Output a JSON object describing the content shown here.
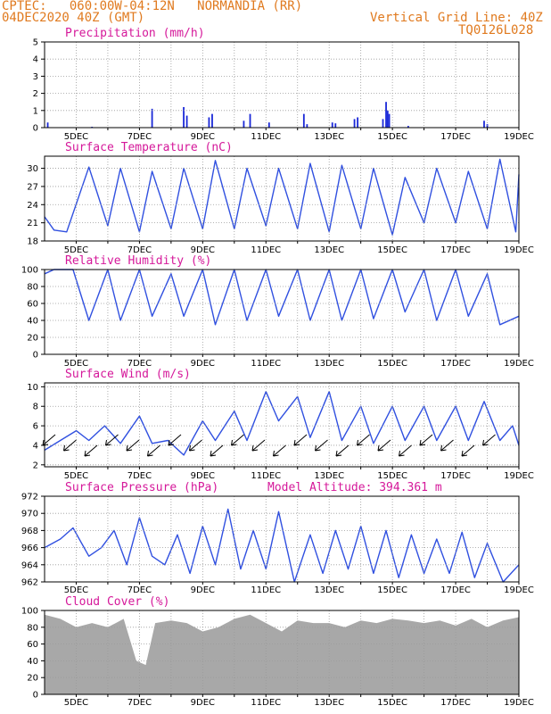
{
  "header": {
    "line1": "CPTEC:   060:00W-04:12N   NORMANDIA (RR)",
    "line2": "04DEC2020 40Z (GMT)",
    "right1": "Vertical Grid Line: 40Z",
    "right2": "TQ0126L028"
  },
  "x_dates": [
    "5DEC",
    "7DEC",
    "9DEC",
    "11DEC",
    "13DEC",
    "15DEC",
    "17DEC",
    "19DEC"
  ],
  "model_altitude": "Model Altitude: 394.361  m",
  "colors": {
    "line": "#3050e0",
    "bar": "#1a28d8",
    "cloud": "#a8a8a8",
    "title": "#d5189a",
    "header": "#e07a1f",
    "grid": "#9a9a9a"
  },
  "chart_data": [
    {
      "type": "bar",
      "title": "Precipitation (mm/h)",
      "ylim": [
        0,
        5
      ],
      "yticks": [
        0,
        1,
        2,
        3,
        4,
        5
      ],
      "series": [
        {
          "values": [
            [
              4.1,
              0.3
            ],
            [
              5.5,
              0.05
            ],
            [
              7.4,
              1.1
            ],
            [
              8.4,
              1.2
            ],
            [
              8.5,
              0.7
            ],
            [
              9.2,
              0.6
            ],
            [
              9.3,
              0.8
            ],
            [
              10.3,
              0.4
            ],
            [
              10.5,
              0.8
            ],
            [
              11.1,
              0.3
            ],
            [
              12.2,
              0.8
            ],
            [
              12.3,
              0.2
            ],
            [
              13.1,
              0.3
            ],
            [
              13.2,
              0.25
            ],
            [
              13.8,
              0.5
            ],
            [
              13.9,
              0.6
            ],
            [
              14.7,
              0.5
            ],
            [
              14.8,
              1.5
            ],
            [
              14.85,
              1.0
            ],
            [
              14.9,
              0.8
            ],
            [
              15.5,
              0.1
            ],
            [
              17.9,
              0.4
            ],
            [
              18.0,
              0.2
            ]
          ]
        }
      ]
    },
    {
      "type": "line",
      "title": "Surface Temperature (nC)",
      "ylim": [
        18,
        32
      ],
      "yticks": [
        18,
        21,
        24,
        27,
        30
      ],
      "series": [
        {
          "values": [
            [
              4.0,
              22
            ],
            [
              4.3,
              19.8
            ],
            [
              4.7,
              19.5
            ],
            [
              5.4,
              30.2
            ],
            [
              6.0,
              20.5
            ],
            [
              6.4,
              30.0
            ],
            [
              7.0,
              19.5
            ],
            [
              7.4,
              29.5
            ],
            [
              8.0,
              20.0
            ],
            [
              8.4,
              30.0
            ],
            [
              9.0,
              20.0
            ],
            [
              9.4,
              31.3
            ],
            [
              10.0,
              20.0
            ],
            [
              10.4,
              30.0
            ],
            [
              11.0,
              20.5
            ],
            [
              11.4,
              30.0
            ],
            [
              12.0,
              20.0
            ],
            [
              12.4,
              30.8
            ],
            [
              13.0,
              19.5
            ],
            [
              13.4,
              30.5
            ],
            [
              14.0,
              20.0
            ],
            [
              14.4,
              30.0
            ],
            [
              15.0,
              19.0
            ],
            [
              15.4,
              28.5
            ],
            [
              16.0,
              21.0
            ],
            [
              16.4,
              30.0
            ],
            [
              17.0,
              21.0
            ],
            [
              17.4,
              29.5
            ],
            [
              18.0,
              20.0
            ],
            [
              18.4,
              31.5
            ],
            [
              18.9,
              19.5
            ],
            [
              19.0,
              29.0
            ]
          ]
        }
      ]
    },
    {
      "type": "line",
      "title": "Relative Humidity (%)",
      "ylim": [
        0,
        100
      ],
      "yticks": [
        0,
        20,
        40,
        60,
        80,
        100
      ],
      "series": [
        {
          "values": [
            [
              4.0,
              95
            ],
            [
              4.3,
              100
            ],
            [
              4.9,
              100
            ],
            [
              5.4,
              40
            ],
            [
              6.0,
              100
            ],
            [
              6.4,
              40
            ],
            [
              7.0,
              100
            ],
            [
              7.4,
              45
            ],
            [
              8.0,
              95
            ],
            [
              8.4,
              45
            ],
            [
              9.0,
              100
            ],
            [
              9.4,
              35
            ],
            [
              10.0,
              100
            ],
            [
              10.4,
              40
            ],
            [
              11.0,
              100
            ],
            [
              11.4,
              45
            ],
            [
              12.0,
              100
            ],
            [
              12.4,
              40
            ],
            [
              13.0,
              100
            ],
            [
              13.4,
              40
            ],
            [
              14.0,
              100
            ],
            [
              14.4,
              42
            ],
            [
              15.0,
              100
            ],
            [
              15.4,
              50
            ],
            [
              16.0,
              100
            ],
            [
              16.4,
              40
            ],
            [
              17.0,
              100
            ],
            [
              17.4,
              45
            ],
            [
              18.0,
              95
            ],
            [
              18.4,
              35
            ],
            [
              19.0,
              45
            ]
          ]
        }
      ]
    },
    {
      "type": "line",
      "title": "Surface Wind (m/s)",
      "ylim": [
        1.8,
        10.4
      ],
      "yticks": [
        2,
        4,
        6,
        8,
        10
      ],
      "series": [
        {
          "values": [
            [
              4.0,
              3.5
            ],
            [
              4.5,
              4.5
            ],
            [
              5.0,
              5.5
            ],
            [
              5.4,
              4.5
            ],
            [
              5.9,
              6.0
            ],
            [
              6.4,
              4.2
            ],
            [
              7.0,
              7.0
            ],
            [
              7.4,
              4.2
            ],
            [
              7.9,
              4.5
            ],
            [
              8.4,
              3.0
            ],
            [
              9.0,
              6.5
            ],
            [
              9.4,
              4.5
            ],
            [
              10.0,
              7.5
            ],
            [
              10.4,
              4.5
            ],
            [
              11.0,
              9.5
            ],
            [
              11.4,
              6.5
            ],
            [
              12.0,
              9.0
            ],
            [
              12.4,
              4.8
            ],
            [
              13.0,
              9.5
            ],
            [
              13.4,
              4.5
            ],
            [
              14.0,
              8.0
            ],
            [
              14.4,
              4.2
            ],
            [
              15.0,
              8.0
            ],
            [
              15.4,
              4.5
            ],
            [
              16.0,
              8.0
            ],
            [
              16.4,
              4.5
            ],
            [
              17.0,
              8.0
            ],
            [
              17.4,
              4.5
            ],
            [
              17.9,
              8.5
            ],
            [
              18.4,
              4.5
            ],
            [
              18.8,
              6.0
            ],
            [
              19.0,
              4.0
            ]
          ]
        }
      ]
    },
    {
      "type": "line",
      "title": "Surface Pressure (hPa)",
      "ylim": [
        962,
        972
      ],
      "yticks": [
        962,
        964,
        966,
        968,
        970,
        972
      ],
      "series": [
        {
          "values": [
            [
              4.0,
              966
            ],
            [
              4.5,
              967
            ],
            [
              4.9,
              968.3
            ],
            [
              5.4,
              965
            ],
            [
              5.8,
              966
            ],
            [
              6.2,
              968
            ],
            [
              6.6,
              964
            ],
            [
              7.0,
              969.5
            ],
            [
              7.4,
              965
            ],
            [
              7.8,
              964
            ],
            [
              8.2,
              967.5
            ],
            [
              8.6,
              963
            ],
            [
              9.0,
              968.5
            ],
            [
              9.4,
              964
            ],
            [
              9.8,
              970.5
            ],
            [
              10.2,
              963.5
            ],
            [
              10.6,
              968
            ],
            [
              11.0,
              963.5
            ],
            [
              11.4,
              970.2
            ],
            [
              11.9,
              962
            ],
            [
              12.4,
              967.5
            ],
            [
              12.8,
              963
            ],
            [
              13.2,
              968
            ],
            [
              13.6,
              963.5
            ],
            [
              14.0,
              968.5
            ],
            [
              14.4,
              963
            ],
            [
              14.8,
              968
            ],
            [
              15.2,
              962.5
            ],
            [
              15.6,
              967.5
            ],
            [
              16.0,
              963
            ],
            [
              16.4,
              967
            ],
            [
              16.8,
              963
            ],
            [
              17.2,
              967.8
            ],
            [
              17.6,
              962.5
            ],
            [
              18.0,
              966.5
            ],
            [
              18.5,
              962
            ],
            [
              19.0,
              964
            ]
          ]
        }
      ]
    },
    {
      "type": "area",
      "title": "Cloud Cover (%)",
      "ylim": [
        0,
        100
      ],
      "yticks": [
        0,
        20,
        40,
        60,
        80,
        100
      ],
      "series": [
        {
          "values": [
            [
              4.0,
              95
            ],
            [
              4.5,
              90
            ],
            [
              5.0,
              80
            ],
            [
              5.5,
              85
            ],
            [
              6.0,
              80
            ],
            [
              6.5,
              90
            ],
            [
              6.9,
              40
            ],
            [
              7.2,
              35
            ],
            [
              7.5,
              85
            ],
            [
              8.0,
              88
            ],
            [
              8.5,
              85
            ],
            [
              9.0,
              75
            ],
            [
              9.5,
              80
            ],
            [
              10.0,
              90
            ],
            [
              10.5,
              95
            ],
            [
              11.0,
              85
            ],
            [
              11.5,
              75
            ],
            [
              12.0,
              88
            ],
            [
              12.5,
              85
            ],
            [
              13.0,
              85
            ],
            [
              13.5,
              80
            ],
            [
              14.0,
              88
            ],
            [
              14.5,
              85
            ],
            [
              15.0,
              90
            ],
            [
              15.5,
              88
            ],
            [
              16.0,
              85
            ],
            [
              16.5,
              88
            ],
            [
              17.0,
              82
            ],
            [
              17.5,
              90
            ],
            [
              18.0,
              80
            ],
            [
              18.5,
              88
            ],
            [
              19.0,
              92
            ]
          ]
        }
      ]
    }
  ]
}
